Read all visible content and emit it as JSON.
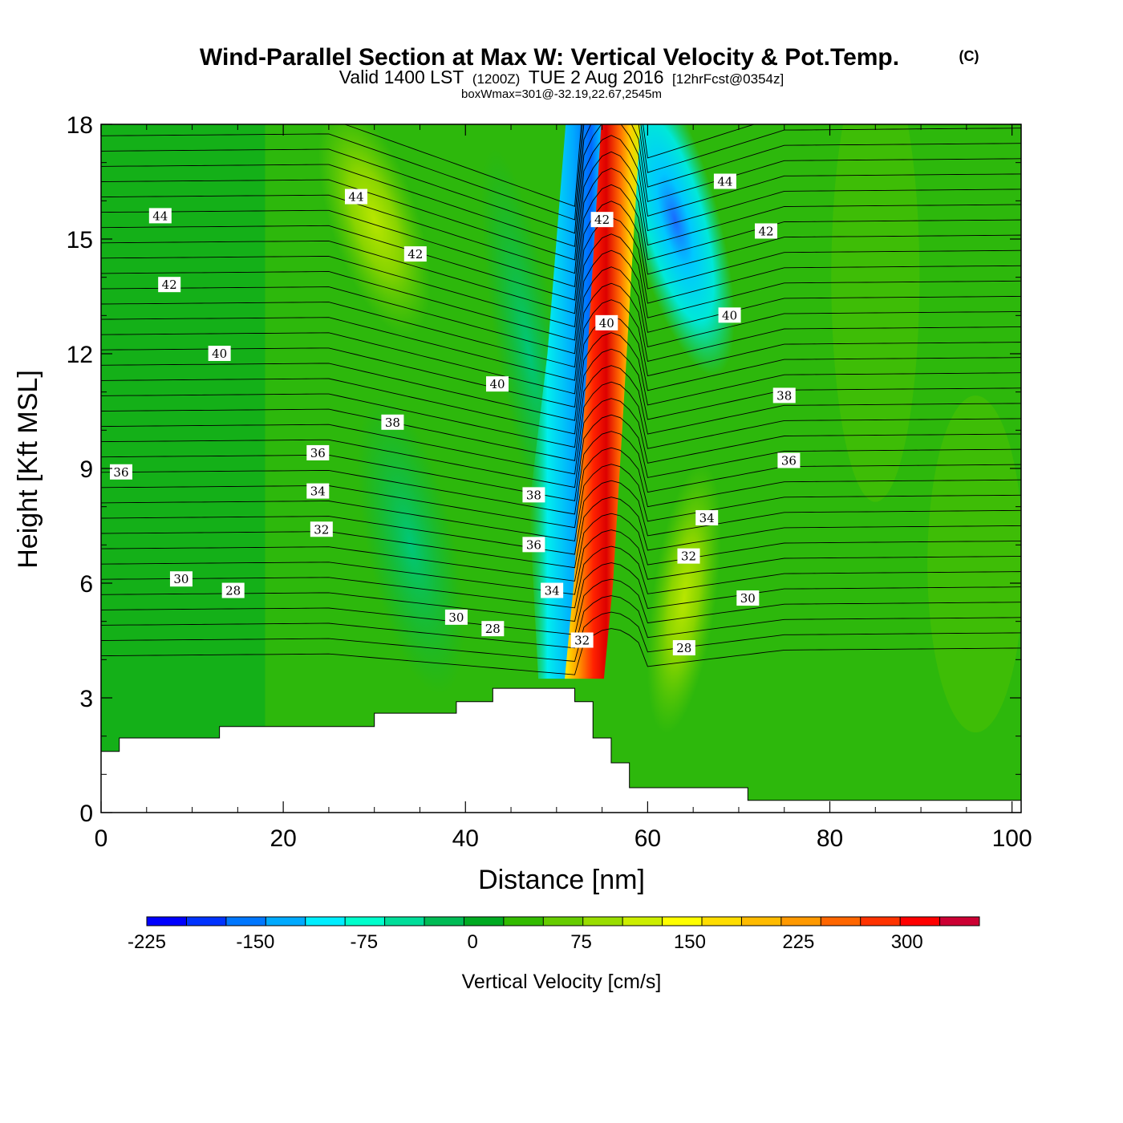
{
  "chart_data": {
    "type": "heatmap",
    "title": "Wind-Parallel Section at Max W: Vertical Velocity & Pot.Temp.",
    "title_mark": "(C)",
    "subtitle": {
      "valid": "Valid 1400 LST",
      "zulu": "(1200Z)",
      "date": "TUE 2 Aug 2016",
      "forecast": "[12hrFcst@0354z]"
    },
    "box_note": "boxWmax=301@-32.19,22.67,2545m",
    "xlabel": "Distance [nm]",
    "ylabel": "Height [Kft MSL]",
    "xlim": [
      0,
      101
    ],
    "ylim": [
      0,
      18
    ],
    "xticks": [
      0,
      20,
      40,
      60,
      80,
      100
    ],
    "yticks": [
      0,
      3,
      6,
      9,
      12,
      15,
      18
    ],
    "colorbar": {
      "label": "Vertical Velocity [cm/s]",
      "ticks": [
        "-225",
        "-150",
        "-75",
        "0",
        "75",
        "150",
        "225",
        "300"
      ],
      "tick_values": [
        -225,
        -150,
        -75,
        0,
        75,
        150,
        225,
        300
      ],
      "range": [
        -225,
        350
      ],
      "colors": [
        "#0000ff",
        "#0033ff",
        "#0077ff",
        "#00aaff",
        "#00eeff",
        "#00ffcc",
        "#00dd99",
        "#00bb55",
        "#00aa22",
        "#33bb00",
        "#66cc00",
        "#99dd00",
        "#ccee00",
        "#ffff00",
        "#ffdd00",
        "#ffbb00",
        "#ff9900",
        "#ff6600",
        "#ff3300",
        "#ff0000",
        "#cc0033"
      ]
    },
    "terrain": [
      [
        0,
        1.6
      ],
      [
        2,
        1.6
      ],
      [
        2,
        1.95
      ],
      [
        13,
        1.95
      ],
      [
        13,
        2.25
      ],
      [
        30,
        2.25
      ],
      [
        30,
        2.6
      ],
      [
        39,
        2.6
      ],
      [
        39,
        2.9
      ],
      [
        43,
        2.9
      ],
      [
        43,
        3.25
      ],
      [
        52,
        3.25
      ],
      [
        52,
        2.9
      ],
      [
        54,
        2.9
      ],
      [
        54,
        1.95
      ],
      [
        56,
        1.95
      ],
      [
        56,
        1.3
      ],
      [
        58,
        1.3
      ],
      [
        58,
        0.65
      ],
      [
        71,
        0.65
      ],
      [
        71,
        0.32
      ],
      [
        101,
        0.32
      ],
      [
        101,
        0
      ],
      [
        0,
        0
      ]
    ],
    "updraft_axis": [
      [
        52,
        3.5
      ],
      [
        53,
        6
      ],
      [
        54,
        10
      ],
      [
        55,
        14
      ],
      [
        56,
        18
      ]
    ],
    "wind_velocity_features": [
      {
        "x": 55.5,
        "z": 10,
        "w": 300
      },
      {
        "x": 51,
        "z": 9,
        "w": -130
      },
      {
        "x": 62,
        "z": 16.5,
        "w": -150
      },
      {
        "x": 64,
        "z": 6,
        "w": 70
      },
      {
        "x": 30,
        "z": 16.5,
        "w": 60
      }
    ],
    "theta_labels": [
      {
        "text": "44",
        "x": 6.5,
        "z": 15.6
      },
      {
        "text": "44",
        "x": 28,
        "z": 16.1
      },
      {
        "text": "44",
        "x": 68.5,
        "z": 16.5
      },
      {
        "text": "42",
        "x": 7.5,
        "z": 13.8
      },
      {
        "text": "42",
        "x": 34.5,
        "z": 14.6
      },
      {
        "text": "42",
        "x": 55,
        "z": 15.5
      },
      {
        "text": "42",
        "x": 73,
        "z": 15.2
      },
      {
        "text": "40",
        "x": 13,
        "z": 12
      },
      {
        "text": "40",
        "x": 43.5,
        "z": 11.2
      },
      {
        "text": "40",
        "x": 55.5,
        "z": 12.8
      },
      {
        "text": "40",
        "x": 69,
        "z": 13
      },
      {
        "text": "38",
        "x": 32,
        "z": 10.2
      },
      {
        "text": "38",
        "x": 47.5,
        "z": 8.3
      },
      {
        "text": "38",
        "x": 75,
        "z": 10.9
      },
      {
        "text": "36",
        "x": 2.2,
        "z": 8.9
      },
      {
        "text": "36",
        "x": 23.8,
        "z": 9.4
      },
      {
        "text": "36",
        "x": 47.5,
        "z": 7
      },
      {
        "text": "36",
        "x": 75.5,
        "z": 9.2
      },
      {
        "text": "34",
        "x": 23.8,
        "z": 8.4
      },
      {
        "text": "34",
        "x": 49.5,
        "z": 5.8
      },
      {
        "text": "34",
        "x": 66.5,
        "z": 7.7
      },
      {
        "text": "32",
        "x": 24.2,
        "z": 7.4
      },
      {
        "text": "32",
        "x": 52.8,
        "z": 4.5
      },
      {
        "text": "32",
        "x": 64.5,
        "z": 6.7
      },
      {
        "text": "30",
        "x": 8.8,
        "z": 6.1
      },
      {
        "text": "30",
        "x": 39,
        "z": 5.1
      },
      {
        "text": "30",
        "x": 71,
        "z": 5.6
      },
      {
        "text": "28",
        "x": 14.5,
        "z": 5.8
      },
      {
        "text": "28",
        "x": 43,
        "z": 4.8
      },
      {
        "text": "28",
        "x": 64,
        "z": 4.3
      }
    ]
  }
}
